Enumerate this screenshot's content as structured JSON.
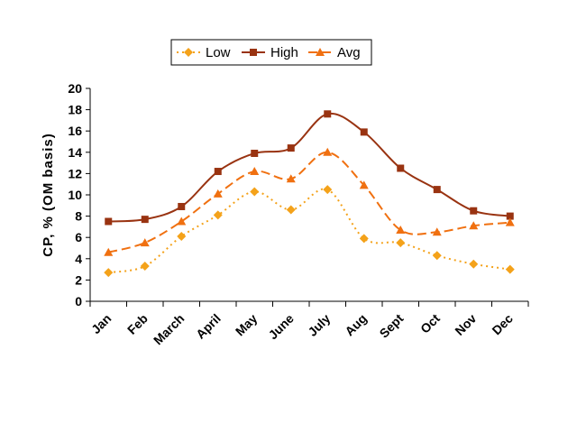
{
  "chart_data": {
    "type": "line",
    "title": "",
    "xlabel": "",
    "ylabel": "CP, % (OM basis)",
    "ylim": [
      0,
      20
    ],
    "yticks": [
      0,
      2,
      4,
      6,
      8,
      10,
      12,
      14,
      16,
      18,
      20
    ],
    "grid": false,
    "legend_position": "top",
    "categories": [
      "Jan",
      "Feb",
      "March",
      "April",
      "May",
      "June",
      "July",
      "Aug",
      "Sept",
      "Oct",
      "Nov",
      "Dec"
    ],
    "series": [
      {
        "name": "Low",
        "color": "#F4A21A",
        "marker": "diamond",
        "line_style": "dotted",
        "values": [
          2.7,
          3.3,
          6.1,
          8.1,
          10.3,
          8.6,
          10.5,
          5.9,
          5.5,
          4.3,
          3.5,
          3.0
        ]
      },
      {
        "name": "High",
        "color": "#993311",
        "marker": "square",
        "line_style": "solid",
        "values": [
          7.5,
          7.7,
          8.9,
          12.2,
          13.9,
          14.4,
          17.6,
          15.9,
          12.5,
          10.5,
          8.5,
          8.0
        ]
      },
      {
        "name": "Avg",
        "color": "#F07010",
        "marker": "triangle",
        "line_style": "dashed",
        "values": [
          4.6,
          5.5,
          7.5,
          10.1,
          12.2,
          11.5,
          14.0,
          10.9,
          6.7,
          6.5,
          7.1,
          7.4
        ]
      }
    ]
  }
}
